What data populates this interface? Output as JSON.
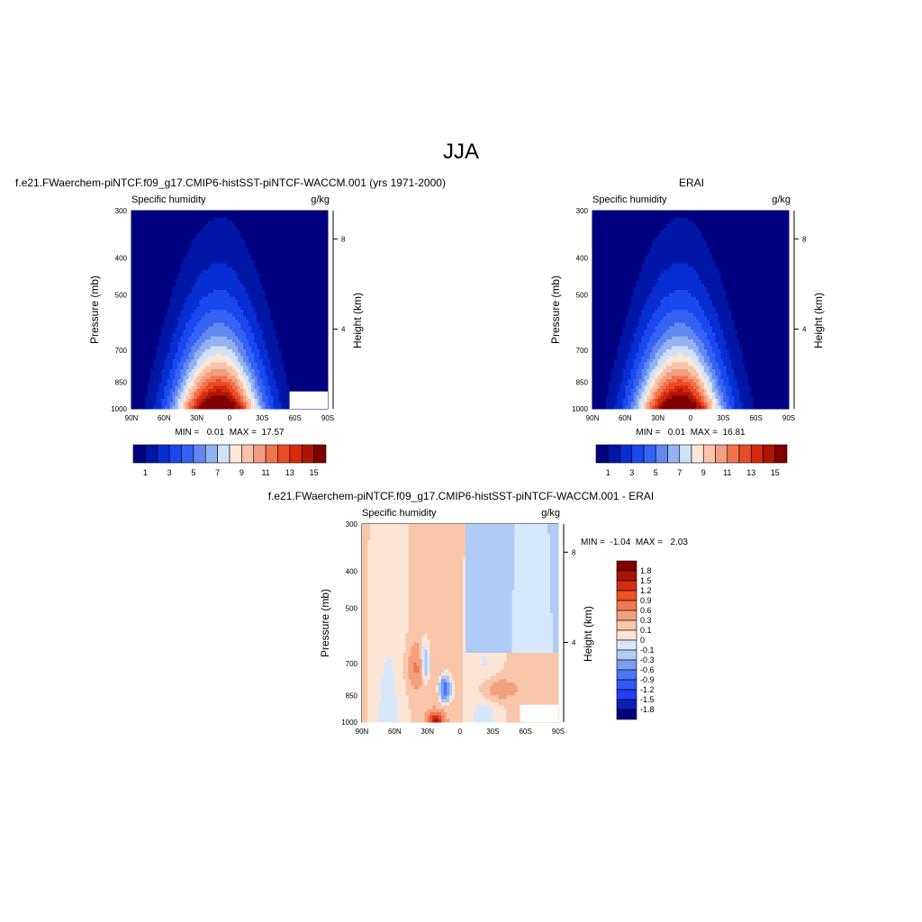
{
  "page_title": "JJA",
  "chart_data": [
    {
      "type": "contour",
      "title": "f.e21.FWaerchem-piNTCF.f09_g17.CMIP6-histSST-piNTCF-WACCM.001 (yrs 1971-2000)",
      "left_string": "Specific humidity",
      "right_string": "g/kg",
      "xlabel": "",
      "ylabel": "Pressure (mb)",
      "y2label": "Height (km)",
      "x_ticks": [
        "90N",
        "60N",
        "30N",
        "0",
        "30S",
        "60S",
        "90S"
      ],
      "y_ticks": [
        300,
        400,
        500,
        700,
        850,
        1000
      ],
      "y2_ticks": [
        8,
        4
      ],
      "ylim": [
        1000,
        300
      ],
      "y_scale": "log",
      "stats_text": "MIN =   0.01  MAX =  17.57",
      "min": 0.01,
      "max": 17.57,
      "colorbar_orientation": "horizontal",
      "colorbar_labels": [
        "1",
        "3",
        "5",
        "7",
        "9",
        "11",
        "13",
        "15"
      ],
      "levels": [
        1,
        2,
        3,
        4,
        5,
        6,
        7,
        8,
        9,
        10,
        11,
        12,
        13,
        14,
        15,
        16
      ]
    },
    {
      "type": "contour",
      "title": "ERAI",
      "left_string": "Specific humidity",
      "right_string": "g/kg",
      "xlabel": "",
      "ylabel": "Pressure (mb)",
      "y2label": "Height (km)",
      "x_ticks": [
        "90N",
        "60N",
        "30N",
        "0",
        "30S",
        "60S",
        "90S"
      ],
      "y_ticks": [
        300,
        400,
        500,
        700,
        850,
        1000
      ],
      "y2_ticks": [
        8,
        4
      ],
      "ylim": [
        1000,
        300
      ],
      "y_scale": "log",
      "stats_text": "MIN =   0.01  MAX =  16.81",
      "min": 0.01,
      "max": 16.81,
      "colorbar_orientation": "horizontal",
      "colorbar_labels": [
        "1",
        "3",
        "5",
        "7",
        "9",
        "11",
        "13",
        "15"
      ],
      "levels": [
        1,
        2,
        3,
        4,
        5,
        6,
        7,
        8,
        9,
        10,
        11,
        12,
        13,
        14,
        15,
        16
      ]
    },
    {
      "type": "contour",
      "title": "f.e21.FWaerchem-piNTCF.f09_g17.CMIP6-histSST-piNTCF-WACCM.001 - ERAI",
      "left_string": "Specific humidity",
      "right_string": "g/kg",
      "xlabel": "",
      "ylabel": "Pressure (mb)",
      "y2label": "Height (km)",
      "x_ticks": [
        "90N",
        "60N",
        "30N",
        "0",
        "30S",
        "60S",
        "90S"
      ],
      "y_ticks": [
        300,
        400,
        500,
        700,
        850,
        1000
      ],
      "y2_ticks": [
        8,
        4
      ],
      "ylim": [
        1000,
        300
      ],
      "y_scale": "log",
      "stats_text": "MIN =  -1.04  MAX =   2.03",
      "min": -1.04,
      "max": 2.03,
      "colorbar_orientation": "vertical",
      "colorbar_labels": [
        "1.8",
        "1.5",
        "1.2",
        "0.9",
        "0.6",
        "0.3",
        "0.1",
        "0",
        "-0.1",
        "-0.3",
        "-0.6",
        "-0.9",
        "-1.2",
        "-1.5",
        "-1.8"
      ],
      "levels": [
        -1.8,
        -1.5,
        -1.2,
        -0.9,
        -0.6,
        -0.3,
        -0.1,
        0,
        0.1,
        0.3,
        0.6,
        0.9,
        1.2,
        1.5,
        1.8
      ]
    }
  ],
  "palette": [
    "#000080",
    "#0016a6",
    "#062ed2",
    "#1a48f0",
    "#3462f2",
    "#6287f0",
    "#93b2f0",
    "#cfe2fa",
    "#fde7d8",
    "#f8c3aa",
    "#f39e80",
    "#f07350",
    "#ea4b25",
    "#d62a0d",
    "#ad1505",
    "#800000"
  ]
}
